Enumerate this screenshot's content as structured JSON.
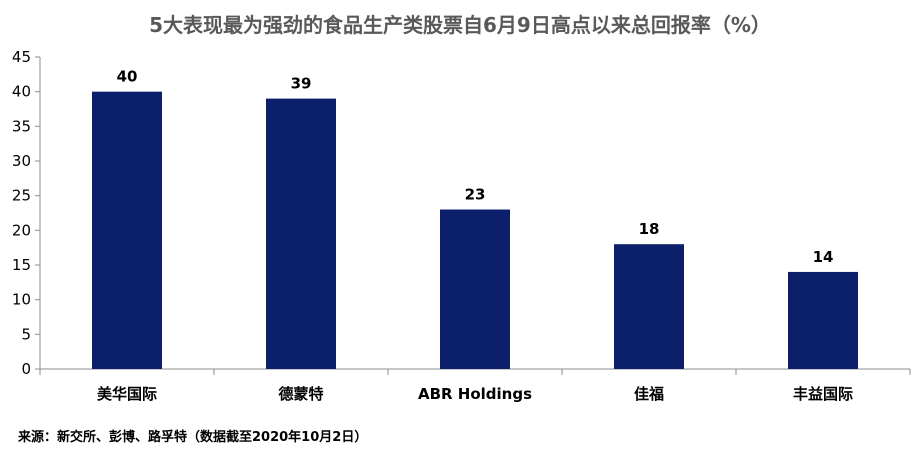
{
  "chart_data": {
    "type": "bar",
    "title": "5大表现最为强劲的食品生产类股票自6月9日高点以来总回报率（%）",
    "categories": [
      "美华国际",
      "德蒙特",
      "ABR Holdings",
      "佳福",
      "丰益国际"
    ],
    "values": [
      40,
      39,
      23,
      18,
      14
    ],
    "value_labels": [
      "40",
      "39",
      "23",
      "18",
      "14"
    ],
    "yticks": [
      "0",
      "5",
      "10",
      "15",
      "20",
      "25",
      "30",
      "35",
      "40",
      "45"
    ],
    "ylim": [
      0,
      45
    ],
    "grid": false,
    "legend": "none",
    "bar_color": "#0c1f6b",
    "axis_color": "#8c8c8c",
    "source": "来源：新交所、彭博、路孚特（数据截至2020年10月2日）"
  }
}
